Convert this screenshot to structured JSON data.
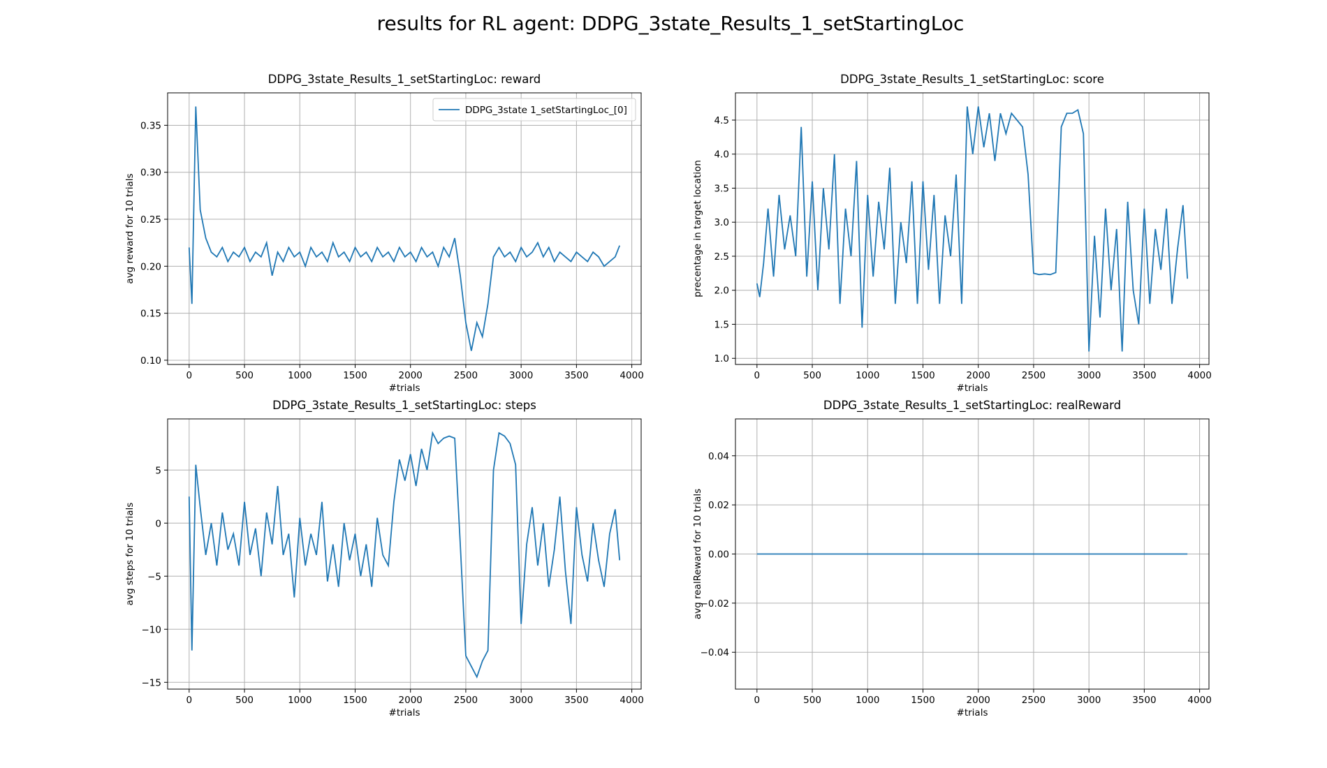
{
  "title": "results for RL agent: DDPG_3state_Results_1_setStartingLoc",
  "chart_data": [
    {
      "type": "line",
      "title": "DDPG_3state_Results_1_setStartingLoc: reward",
      "xlabel": "#trials",
      "ylabel": "avg reward for 10 trials",
      "x": [
        0,
        25,
        60,
        100,
        150,
        200,
        250,
        300,
        350,
        400,
        450,
        500,
        550,
        600,
        650,
        700,
        750,
        800,
        850,
        900,
        950,
        1000,
        1050,
        1100,
        1150,
        1200,
        1250,
        1300,
        1350,
        1400,
        1450,
        1500,
        1550,
        1600,
        1650,
        1700,
        1750,
        1800,
        1850,
        1900,
        1950,
        2000,
        2050,
        2100,
        2150,
        2200,
        2250,
        2300,
        2350,
        2400,
        2450,
        2500,
        2550,
        2600,
        2650,
        2700,
        2750,
        2800,
        2850,
        2900,
        2950,
        3000,
        3050,
        3100,
        3150,
        3200,
        3250,
        3300,
        3350,
        3400,
        3450,
        3500,
        3550,
        3600,
        3650,
        3700,
        3750,
        3800,
        3850,
        3890
      ],
      "series": [
        {
          "name": "DDPG_3state 1_setStartingLoc_[0]",
          "color": "#1f77b4",
          "values": [
            0.22,
            0.16,
            0.37,
            0.26,
            0.23,
            0.215,
            0.21,
            0.22,
            0.205,
            0.215,
            0.21,
            0.22,
            0.205,
            0.215,
            0.21,
            0.225,
            0.19,
            0.215,
            0.205,
            0.22,
            0.21,
            0.215,
            0.2,
            0.22,
            0.21,
            0.215,
            0.205,
            0.225,
            0.21,
            0.215,
            0.205,
            0.22,
            0.21,
            0.215,
            0.205,
            0.22,
            0.21,
            0.215,
            0.205,
            0.22,
            0.21,
            0.215,
            0.205,
            0.22,
            0.21,
            0.215,
            0.2,
            0.22,
            0.21,
            0.23,
            0.19,
            0.14,
            0.11,
            0.14,
            0.125,
            0.16,
            0.21,
            0.22,
            0.21,
            0.215,
            0.205,
            0.22,
            0.21,
            0.215,
            0.225,
            0.21,
            0.22,
            0.205,
            0.215,
            0.21,
            0.205,
            0.215,
            0.21,
            0.205,
            0.215,
            0.21,
            0.2,
            0.205,
            0.21,
            0.222
          ]
        }
      ],
      "xlim": [
        -194.5,
        4084.5
      ],
      "xticks": [
        0,
        500,
        1000,
        1500,
        2000,
        2500,
        3000,
        3500,
        4000
      ],
      "ylim": [
        0.0955,
        0.3845
      ],
      "yticks": [
        {
          "value": 0.1,
          "label": "0.10"
        },
        0.15,
        {
          "value": 0.2,
          "label": "0.20"
        },
        0.25,
        {
          "value": 0.3,
          "label": "0.30"
        },
        0.35
      ],
      "grid": true,
      "legend": "upper right"
    },
    {
      "type": "line",
      "title": "DDPG_3state_Results_1_setStartingLoc: score",
      "xlabel": "#trials",
      "ylabel": "precentage in target location",
      "x": [
        0,
        25,
        60,
        100,
        150,
        200,
        250,
        300,
        350,
        400,
        450,
        500,
        550,
        600,
        650,
        700,
        750,
        800,
        850,
        900,
        950,
        1000,
        1050,
        1100,
        1150,
        1200,
        1250,
        1300,
        1350,
        1400,
        1450,
        1500,
        1550,
        1600,
        1650,
        1700,
        1750,
        1800,
        1850,
        1900,
        1950,
        2000,
        2050,
        2100,
        2150,
        2200,
        2250,
        2300,
        2350,
        2400,
        2450,
        2500,
        2550,
        2600,
        2650,
        2700,
        2750,
        2800,
        2850,
        2900,
        2950,
        3000,
        3050,
        3100,
        3150,
        3200,
        3250,
        3300,
        3350,
        3400,
        3450,
        3500,
        3550,
        3600,
        3650,
        3700,
        3750,
        3800,
        3850,
        3890
      ],
      "series": [
        {
          "color": "#1f77b4",
          "values": [
            2.1,
            1.9,
            2.4,
            3.2,
            2.2,
            3.4,
            2.6,
            3.1,
            2.5,
            4.4,
            2.2,
            3.6,
            2.0,
            3.5,
            2.6,
            4.0,
            1.8,
            3.2,
            2.5,
            3.9,
            1.45,
            3.4,
            2.2,
            3.3,
            2.6,
            3.8,
            1.8,
            3.0,
            2.4,
            3.6,
            1.8,
            3.6,
            2.3,
            3.4,
            1.8,
            3.1,
            2.5,
            3.7,
            1.8,
            4.7,
            4.0,
            4.7,
            4.1,
            4.6,
            3.9,
            4.6,
            4.3,
            4.6,
            4.5,
            4.4,
            3.7,
            2.25,
            2.23,
            2.24,
            2.23,
            2.26,
            4.4,
            4.6,
            4.6,
            4.65,
            4.3,
            1.1,
            2.8,
            1.6,
            3.2,
            2.0,
            2.9,
            1.1,
            3.3,
            2.0,
            1.5,
            3.2,
            1.8,
            2.9,
            2.3,
            3.2,
            1.8,
            2.6,
            3.25,
            2.17
          ]
        }
      ],
      "xlim": [
        -194.5,
        4084.5
      ],
      "xticks": [
        0,
        500,
        1000,
        1500,
        2000,
        2500,
        3000,
        3500,
        4000
      ],
      "ylim": [
        0.91,
        4.9
      ],
      "yticks": [
        {
          "value": 1,
          "label": "1.0"
        },
        1.5,
        {
          "value": 2,
          "label": "2.0"
        },
        2.5,
        {
          "value": 3,
          "label": "3.0"
        },
        3.5,
        {
          "value": 4,
          "label": "4.0"
        },
        4.5
      ],
      "grid": true
    },
    {
      "type": "line",
      "title": "DDPG_3state_Results_1_setStartingLoc: steps",
      "xlabel": "#trials",
      "ylabel": "avg steps for 10 trials",
      "x": [
        0,
        25,
        60,
        100,
        150,
        200,
        250,
        300,
        350,
        400,
        450,
        500,
        550,
        600,
        650,
        700,
        750,
        800,
        850,
        900,
        950,
        1000,
        1050,
        1100,
        1150,
        1200,
        1250,
        1300,
        1350,
        1400,
        1450,
        1500,
        1550,
        1600,
        1650,
        1700,
        1750,
        1800,
        1850,
        1900,
        1950,
        2000,
        2050,
        2100,
        2150,
        2200,
        2250,
        2300,
        2350,
        2400,
        2450,
        2500,
        2550,
        2600,
        2650,
        2700,
        2750,
        2800,
        2850,
        2900,
        2950,
        3000,
        3050,
        3100,
        3150,
        3200,
        3250,
        3300,
        3350,
        3400,
        3450,
        3500,
        3550,
        3600,
        3650,
        3700,
        3750,
        3800,
        3850,
        3890
      ],
      "series": [
        {
          "color": "#1f77b4",
          "values": [
            2.5,
            -12,
            5.5,
            1.5,
            -3,
            0,
            -4,
            1,
            -2.5,
            -1,
            -4,
            2,
            -3,
            -0.5,
            -5,
            1,
            -2,
            3.5,
            -3,
            -1,
            -7,
            0.5,
            -4,
            -1,
            -3,
            2,
            -5.5,
            -2,
            -6,
            0,
            -3.5,
            -1,
            -5,
            -2,
            -6,
            0.5,
            -3,
            -4,
            2,
            6,
            4,
            6.5,
            3.5,
            7,
            5,
            8.5,
            7.5,
            8,
            8.2,
            8,
            -2,
            -12.5,
            -13.5,
            -14.5,
            -13,
            -12,
            5,
            8.5,
            8.2,
            7.5,
            5.5,
            -9.5,
            -2,
            1.5,
            -4,
            0,
            -6,
            -2.5,
            2.5,
            -4.5,
            -9.5,
            1.5,
            -3,
            -5.5,
            0,
            -3.5,
            -6,
            -1,
            1.3,
            -3.5
          ]
        }
      ],
      "xlim": [
        -194.5,
        4084.5
      ],
      "xticks": [
        0,
        500,
        1000,
        1500,
        2000,
        2500,
        3000,
        3500,
        4000
      ],
      "ylim": [
        -15.64,
        9.82
      ],
      "yticks": [
        {
          "value": -15,
          "label": "−15"
        },
        {
          "value": -10,
          "label": "−10"
        },
        {
          "value": -5,
          "label": "−5"
        },
        0,
        5
      ],
      "grid": true
    },
    {
      "type": "line",
      "title": "DDPG_3state_Results_1_setStartingLoc: realReward",
      "xlabel": "#trials",
      "ylabel": "avg realReward for 10 trials",
      "x": [
        0,
        3890
      ],
      "series": [
        {
          "color": "#1f77b4",
          "values": [
            0,
            0
          ]
        }
      ],
      "xlim": [
        -194.5,
        4084.5
      ],
      "xticks": [
        0,
        500,
        1000,
        1500,
        2000,
        2500,
        3000,
        3500,
        4000
      ],
      "ylim": [
        -0.055,
        0.055
      ],
      "yticks": [
        {
          "value": -0.04,
          "label": "−0.04"
        },
        {
          "value": -0.02,
          "label": "−0.02"
        },
        {
          "value": 0,
          "label": "0.00"
        },
        {
          "value": 0.02,
          "label": "0.02"
        },
        {
          "value": 0.04,
          "label": "0.04"
        }
      ],
      "grid": true
    }
  ]
}
